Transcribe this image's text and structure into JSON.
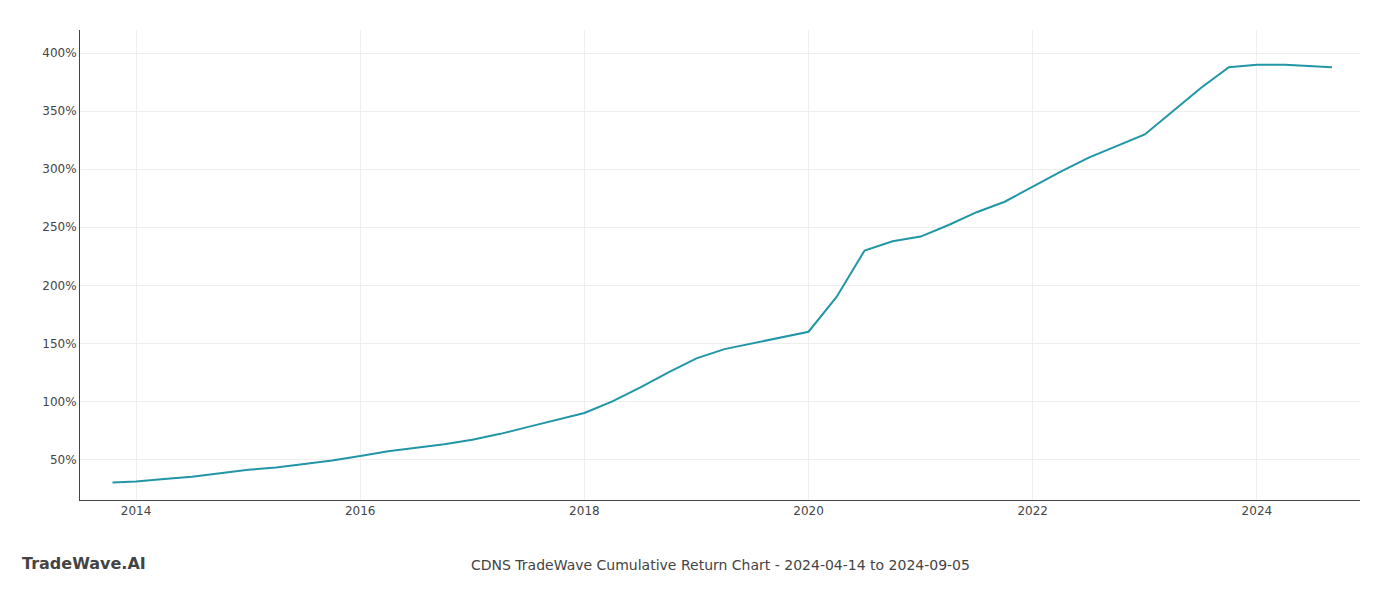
{
  "chart_data": {
    "type": "line",
    "title": "CDNS TradeWave Cumulative Return Chart - 2024-04-14 to 2024-09-05",
    "annotations": [
      "TradeWave.AI"
    ],
    "x": [
      2013.79,
      2014.0,
      2014.25,
      2014.5,
      2014.75,
      2015.0,
      2015.25,
      2015.5,
      2015.75,
      2016.0,
      2016.25,
      2016.5,
      2016.75,
      2017.0,
      2017.25,
      2017.5,
      2017.75,
      2018.0,
      2018.25,
      2018.5,
      2018.75,
      2019.0,
      2019.25,
      2019.5,
      2019.75,
      2020.0,
      2020.25,
      2020.5,
      2020.75,
      2021.0,
      2021.25,
      2021.5,
      2021.75,
      2022.0,
      2022.25,
      2022.5,
      2022.75,
      2023.0,
      2023.25,
      2023.5,
      2023.75,
      2024.0,
      2024.25,
      2024.5,
      2024.67
    ],
    "values": [
      30,
      31,
      33,
      35,
      38,
      41,
      43,
      46,
      49,
      53,
      57,
      60,
      63,
      67,
      72,
      78,
      84,
      90,
      100,
      112,
      125,
      137,
      145,
      150,
      155,
      160,
      190,
      230,
      238,
      242,
      252,
      263,
      272,
      285,
      298,
      310,
      320,
      330,
      350,
      370,
      388,
      390,
      390,
      389,
      388
    ],
    "color": "#2196a6",
    "xlim": [
      2013.5,
      2024.92
    ],
    "xticks": [
      2014,
      2016,
      2018,
      2020,
      2022,
      2024
    ],
    "ylim": [
      15,
      420
    ],
    "yticks": [
      {
        "value": 50,
        "label": "50%"
      },
      {
        "value": 100,
        "label": "100%"
      },
      {
        "value": 150,
        "label": "150%"
      },
      {
        "value": 200,
        "label": "200%"
      },
      {
        "value": 250,
        "label": "250%"
      },
      {
        "value": 300,
        "label": "300%"
      },
      {
        "value": 350,
        "label": "350%"
      },
      {
        "value": 400,
        "label": "400%"
      }
    ],
    "grid": true
  }
}
